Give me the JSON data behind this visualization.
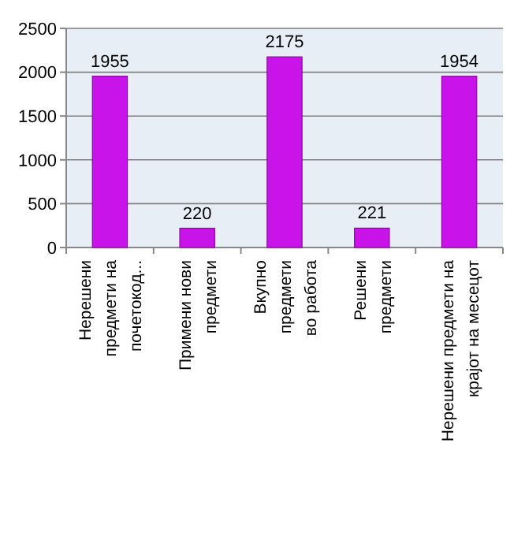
{
  "chart_data": {
    "type": "bar",
    "categories": [
      "Нерешени\nпредмети на\nпочетокод...",
      "Примени нови\nпредмети",
      "Вкупно\nпредмети\nво работа",
      "Решени\nпредмети",
      "Нерешени предмети на\nкрајот на месецот"
    ],
    "values": [
      1955,
      220,
      2175,
      221,
      1954
    ],
    "color": "#c814e8",
    "ylim": [
      0,
      2500
    ],
    "yticks": [
      0,
      500,
      1000,
      1500,
      2000,
      2500
    ],
    "grid": "y",
    "data_labels": true
  }
}
